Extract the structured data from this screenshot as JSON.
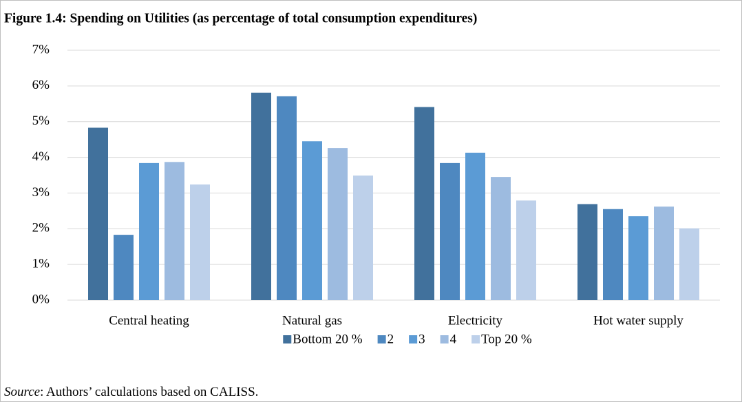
{
  "chart_data": {
    "type": "bar",
    "title": "Figure 1.4: Spending on Utilities (as percentage of total consumption expenditures)",
    "categories": [
      "Central heating",
      "Natural gas",
      "Electricity",
      "Hot water supply"
    ],
    "series": [
      {
        "name": "Bottom 20 %",
        "color": "#41719c",
        "values": [
          4.83,
          5.81,
          5.41,
          2.69
        ]
      },
      {
        "name": "2",
        "color": "#4e88c0",
        "values": [
          1.83,
          5.71,
          3.84,
          2.55
        ]
      },
      {
        "name": "3",
        "color": "#5b9bd5",
        "values": [
          3.84,
          4.45,
          4.13,
          2.35
        ]
      },
      {
        "name": "4",
        "color": "#9dbbe0",
        "values": [
          3.87,
          4.26,
          3.45,
          2.62
        ]
      },
      {
        "name": "Top 20 %",
        "color": "#bdd0ea",
        "values": [
          3.24,
          3.49,
          2.79,
          2.01
        ]
      }
    ],
    "ylim": [
      0,
      7
    ],
    "yticks": [
      {
        "value": 0,
        "label": "0%"
      },
      {
        "value": 1,
        "label": "1%"
      },
      {
        "value": 2,
        "label": "2%"
      },
      {
        "value": 3,
        "label": "3%"
      },
      {
        "value": 4,
        "label": "4%"
      },
      {
        "value": 5,
        "label": "5%"
      },
      {
        "value": 6,
        "label": "6%"
      },
      {
        "value": 7,
        "label": "7%"
      }
    ],
    "grid": true,
    "legend": "bottom",
    "source_label": "Source",
    "source_text": ": Authors’ calculations based on CALISS."
  }
}
